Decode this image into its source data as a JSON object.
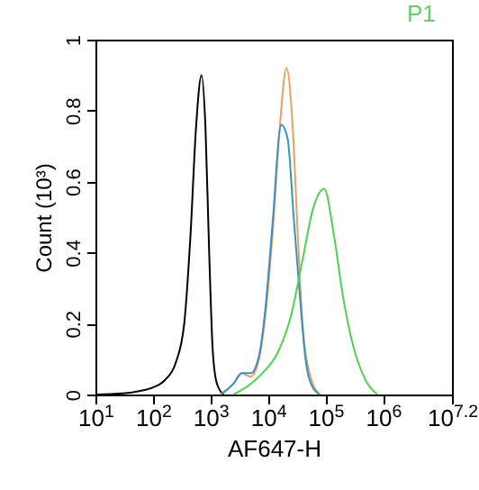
{
  "chart_data": {
    "type": "line",
    "title": "P1",
    "xlabel": "AF647-H",
    "ylabel": "Count (10³)",
    "log": "x",
    "xlim": [
      10,
      15848932
    ],
    "xticks": [
      {
        "value": 10,
        "label": "10$^{1}$"
      },
      {
        "value": 100,
        "label": "10$^{2}$"
      },
      {
        "value": 1000,
        "label": "10$^{3}$"
      },
      {
        "value": 10000,
        "label": "10$^{4}$"
      },
      {
        "value": 100000,
        "label": "10$^{5}$"
      },
      {
        "value": 1000000,
        "label": "10$^{6}$"
      },
      {
        "value": 15848932,
        "label": "10$^{7.2}$"
      }
    ],
    "ylim": [
      0,
      1
    ],
    "yticks": [
      0,
      0.2,
      0.4,
      0.6,
      0.8,
      1
    ],
    "grid": false,
    "series": [
      {
        "color": "#000000",
        "x": [
          10,
          30,
          60,
          100,
          160,
          250,
          350,
          450,
          560,
          700,
          820,
          950,
          1100,
          1300,
          1700
        ],
        "values": [
          0,
          0.003,
          0.01,
          0.02,
          0.04,
          0.09,
          0.2,
          0.45,
          0.75,
          0.9,
          0.75,
          0.4,
          0.12,
          0.03,
          0
        ]
      },
      {
        "color": "#e8a060",
        "x": [
          1500,
          2500,
          3500,
          5000,
          7000,
          9000,
          12000,
          16000,
          21000,
          27000,
          33000,
          40000,
          55000,
          80000
        ],
        "values": [
          0,
          0.03,
          0.06,
          0.05,
          0.1,
          0.22,
          0.45,
          0.75,
          0.92,
          0.75,
          0.45,
          0.2,
          0.05,
          0
        ]
      },
      {
        "color": "#3a90c0",
        "x": [
          1500,
          2500,
          3500,
          5000,
          7000,
          9000,
          12000,
          17000,
          22000,
          28000,
          35000,
          45000,
          60000,
          80000
        ],
        "values": [
          0,
          0.03,
          0.06,
          0.06,
          0.11,
          0.24,
          0.48,
          0.76,
          0.72,
          0.5,
          0.3,
          0.1,
          0.02,
          0
        ]
      },
      {
        "color": "#50d050",
        "x": [
          2500,
          5000,
          8000,
          15000,
          25000,
          40000,
          60000,
          95000,
          140000,
          200000,
          300000,
          500000,
          800000
        ],
        "values": [
          0,
          0.03,
          0.06,
          0.12,
          0.22,
          0.38,
          0.52,
          0.58,
          0.45,
          0.28,
          0.14,
          0.04,
          0
        ]
      }
    ]
  }
}
